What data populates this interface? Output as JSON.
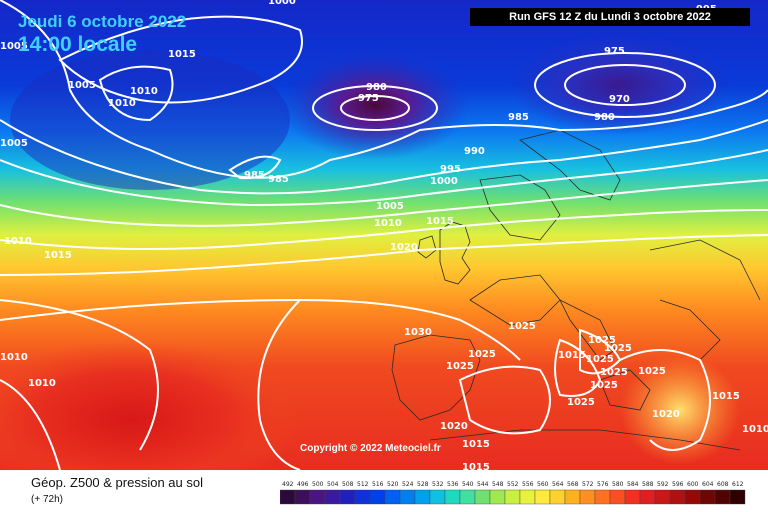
{
  "header": {
    "valid_date": "Jeudi 6 octobre 2022",
    "local_time": "14:00 locale",
    "run_info": "Run GFS 12 Z du Lundi 3 octobre 2022"
  },
  "map": {
    "copyright": "Copyright © 2022 Meteociel.fr",
    "isobar_labels": [
      "1005",
      "1015",
      "1000",
      "1010",
      "1005",
      "1010",
      "1005",
      "980",
      "975",
      "995",
      "975",
      "970",
      "980",
      "985",
      "985",
      "985",
      "990",
      "995",
      "1000",
      "1005",
      "1010",
      "1015",
      "1010",
      "1020",
      "1010",
      "1015",
      "1025",
      "1030",
      "1025",
      "1025",
      "1025",
      "1015",
      "1025",
      "1025",
      "1025",
      "1025",
      "1025",
      "1025",
      "1010",
      "1015",
      "1020",
      "1020",
      "1015",
      "1015",
      "1010",
      "1015"
    ]
  },
  "footer": {
    "product": "Géop. Z500 & pression au sol",
    "forecast_hour": "(+ 72h)",
    "scale_ticks": [
      "492",
      "496",
      "500",
      "504",
      "508",
      "512",
      "516",
      "520",
      "524",
      "528",
      "532",
      "536",
      "540",
      "544",
      "548",
      "552",
      "556",
      "560",
      "564",
      "568",
      "572",
      "576",
      "580",
      "584",
      "588",
      "592",
      "596",
      "600",
      "604",
      "608",
      "612"
    ],
    "scale_colors": [
      "#2b0a3a",
      "#3b0f5a",
      "#4a1580",
      "#3a1aa0",
      "#2020c0",
      "#1030d8",
      "#0040e8",
      "#0060f0",
      "#0080f0",
      "#00a0f0",
      "#10c0e0",
      "#20d8c0",
      "#40e0a0",
      "#70e070",
      "#a0e850",
      "#c8f040",
      "#e8f040",
      "#ffe840",
      "#ffd030",
      "#ffb020",
      "#ff9020",
      "#ff7020",
      "#f85020",
      "#f03020",
      "#e02020",
      "#c81818",
      "#b01010",
      "#980808",
      "#700505",
      "#500303",
      "#300000"
    ]
  }
}
